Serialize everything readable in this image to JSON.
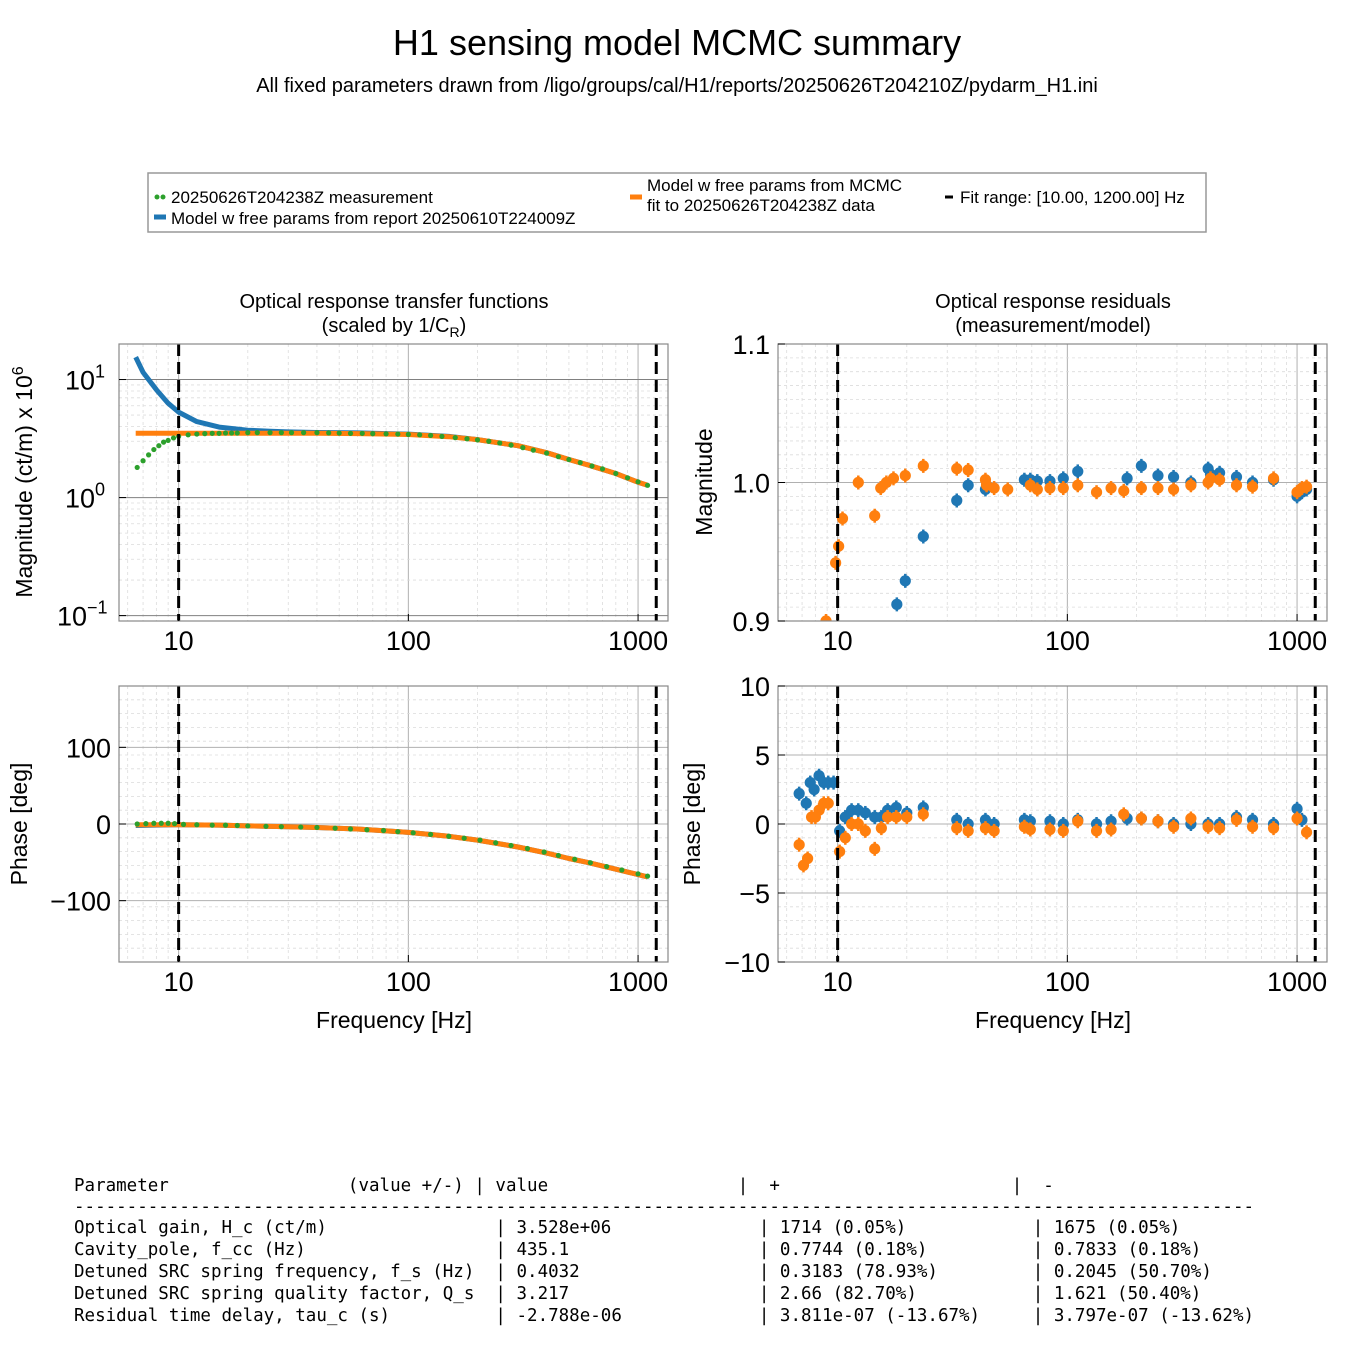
{
  "figure": {
    "title": "H1 sensing model MCMC summary",
    "subtitle": "All fixed parameters drawn from /ligo/groups/cal/H1/reports/20250626T204210Z/pydarm_H1.ini"
  },
  "legend": {
    "measurement": "20250626T204238Z measurement",
    "model_report": "Model w free params from report 20250610T224009Z",
    "model_mcmc_line1": "Model w free params from MCMC",
    "model_mcmc_line2": "fit to 20250626T204238Z data",
    "fit_range": "Fit range: [10.00, 1200.00] Hz"
  },
  "colors": {
    "measurement": "#2ca02c",
    "model_report": "#1f77b4",
    "model_mcmc": "#ff7f0e",
    "fit_range": "#000000"
  },
  "chart_data": [
    {
      "id": "tf_mag",
      "type": "line",
      "title": "Optical response transfer functions",
      "title_line2": "(scaled by 1/C",
      "title_sub": "R",
      "title_close": ")",
      "ylabel": "Magnitude (ct/m) x 10",
      "ylabel_sup": "6",
      "xscale": "log",
      "yscale": "log",
      "xlim": [
        5.5,
        1350
      ],
      "ylim": [
        0.09,
        20
      ],
      "xticks": [
        10,
        100,
        1000
      ],
      "xticklabels": [
        "10",
        "100",
        "1000"
      ],
      "yticks": [
        0.1,
        1,
        10
      ],
      "yticklabels": [
        "10",
        "10",
        "10"
      ],
      "yticksups": [
        "−1",
        "0",
        "1"
      ],
      "vlines": [
        10,
        1200
      ],
      "series": [
        {
          "name": "Model w free params from report 20250610T224009Z",
          "style": "line",
          "color": "#1f77b4",
          "x": [
            6.5,
            7,
            8,
            9,
            10,
            12,
            15,
            20,
            25,
            30,
            40,
            60,
            100,
            150,
            200,
            300,
            400,
            500,
            600,
            800,
            1000,
            1100
          ],
          "y": [
            15.5,
            11.5,
            8.2,
            6.3,
            5.3,
            4.4,
            3.95,
            3.72,
            3.64,
            3.6,
            3.56,
            3.53,
            3.45,
            3.3,
            3.1,
            2.75,
            2.4,
            2.1,
            1.9,
            1.6,
            1.35,
            1.27
          ]
        },
        {
          "name": "Model w free params from MCMC fit to 20250626T204238Z data",
          "style": "line",
          "color": "#ff7f0e",
          "x": [
            6.5,
            10,
            20,
            40,
            60,
            100,
            150,
            200,
            300,
            400,
            500,
            600,
            800,
            1000,
            1100
          ],
          "y": [
            3.5,
            3.5,
            3.5,
            3.5,
            3.48,
            3.42,
            3.28,
            3.1,
            2.75,
            2.4,
            2.1,
            1.9,
            1.6,
            1.35,
            1.27
          ]
        },
        {
          "name": "20250626T204238Z measurement",
          "style": "dots",
          "color": "#2ca02c",
          "x": [
            6.6,
            7.0,
            7.4,
            7.8,
            8.2,
            8.6,
            9.0,
            9.5,
            10.0,
            11,
            12,
            13,
            14,
            15,
            16,
            17,
            18,
            20,
            22,
            25,
            28,
            31,
            35,
            40,
            45,
            50,
            56,
            63,
            70,
            80,
            90,
            100,
            112,
            125,
            140,
            160,
            180,
            200,
            224,
            250,
            280,
            315,
            350,
            400,
            450,
            500,
            560,
            630,
            700,
            800,
            900,
            1000,
            1100
          ],
          "y": [
            1.8,
            2.05,
            2.3,
            2.55,
            2.75,
            2.95,
            3.05,
            3.2,
            3.3,
            3.4,
            3.45,
            3.48,
            3.5,
            3.5,
            3.52,
            3.52,
            3.52,
            3.55,
            3.55,
            3.55,
            3.55,
            3.55,
            3.55,
            3.55,
            3.53,
            3.52,
            3.5,
            3.5,
            3.48,
            3.47,
            3.45,
            3.43,
            3.4,
            3.36,
            3.3,
            3.22,
            3.15,
            3.08,
            3.0,
            2.9,
            2.78,
            2.65,
            2.52,
            2.38,
            2.22,
            2.1,
            1.98,
            1.85,
            1.75,
            1.6,
            1.47,
            1.36,
            1.27
          ]
        }
      ]
    },
    {
      "id": "res_mag",
      "type": "scatter",
      "title": "Optical response residuals",
      "title_line2": "(measurement/model)",
      "ylabel": "Magnitude",
      "xscale": "log",
      "xlim": [
        5.5,
        1350
      ],
      "ylim": [
        0.9,
        1.1
      ],
      "xticks": [
        10,
        100,
        1000
      ],
      "xticklabels": [
        "10",
        "100",
        "1000"
      ],
      "yticks": [
        0.9,
        1.0,
        1.1
      ],
      "yticklabels": [
        "0.9",
        "1.0",
        "1.1"
      ],
      "vlines": [
        10,
        1200
      ],
      "series": [
        {
          "name": "Model w free params from report 20250610T224009Z",
          "style": "points",
          "color": "#1f77b4",
          "x": [
            18.1,
            19.7,
            23.6,
            33,
            37,
            44,
            44.5,
            65,
            69,
            74,
            84,
            96,
            111,
            182,
            210,
            248,
            290,
            345,
            410,
            420,
            460,
            545,
            640,
            790,
            1000,
            1050,
            1100
          ],
          "y": [
            0.912,
            0.929,
            0.961,
            0.987,
            0.998,
            0.995,
            0.998,
            1.002,
            1.002,
            1.001,
            1.001,
            1.003,
            1.008,
            1.003,
            1.012,
            1.005,
            1.004,
            1.0,
            1.01,
            1.006,
            1.007,
            1.004,
            1.0,
            1.002,
            0.99,
            0.993,
            0.995
          ]
        },
        {
          "name": "Model w free params from MCMC fit to 20250626T204238Z data",
          "style": "points",
          "color": "#ff7f0e",
          "x": [
            8.9,
            9.8,
            10.1,
            10.5,
            12.3,
            14.5,
            15.4,
            16.3,
            17.5,
            19.7,
            23.6,
            33,
            37,
            44,
            44.5,
            48,
            55,
            69,
            74,
            84,
            96,
            111,
            134,
            155,
            176,
            210,
            248,
            290,
            345,
            410,
            420,
            460,
            545,
            640,
            790,
            1000,
            1050,
            1100
          ],
          "y": [
            0.9,
            0.942,
            0.954,
            0.974,
            1.0,
            0.976,
            0.996,
            1.0,
            1.003,
            1.005,
            1.012,
            1.01,
            1.009,
            1.002,
            0.998,
            0.996,
            0.995,
            0.998,
            0.995,
            0.996,
            0.996,
            0.998,
            0.993,
            0.996,
            0.994,
            0.996,
            0.996,
            0.995,
            0.998,
            1.0,
            1.003,
            1.002,
            0.998,
            0.997,
            1.003,
            0.993,
            0.996,
            0.997
          ]
        }
      ]
    },
    {
      "id": "tf_phase",
      "type": "line",
      "ylabel": "Phase [deg]",
      "xlabel": "Frequency [Hz]",
      "xscale": "log",
      "xlim": [
        5.5,
        1350
      ],
      "ylim": [
        -180,
        180
      ],
      "xticks": [
        10,
        100,
        1000
      ],
      "xticklabels": [
        "10",
        "100",
        "1000"
      ],
      "yticks": [
        100,
        0,
        -100
      ],
      "yticklabels": [
        "100",
        "0",
        "−100"
      ],
      "vlines": [
        10,
        1200
      ],
      "series": [
        {
          "name": "Model w free params from report 20250610T224009Z",
          "style": "line",
          "color": "#1f77b4",
          "x": [
            6.5,
            8,
            10,
            15,
            20,
            30,
            40,
            60,
            80,
            100,
            150,
            200,
            300,
            400,
            500,
            600,
            800,
            1000,
            1100
          ],
          "y": [
            -2,
            -1.5,
            -1,
            -1.5,
            -2.5,
            -3.5,
            -4.5,
            -6.5,
            -9,
            -11,
            -16,
            -21,
            -30,
            -38,
            -45,
            -50,
            -59,
            -66,
            -69
          ]
        },
        {
          "name": "Model w free params from MCMC fit to 20250626T204238Z data",
          "style": "line",
          "color": "#ff7f0e",
          "x": [
            6.5,
            8,
            10,
            15,
            20,
            30,
            40,
            60,
            80,
            100,
            150,
            200,
            300,
            400,
            500,
            600,
            800,
            1000,
            1100
          ],
          "y": [
            -1,
            -1,
            -1,
            -1.5,
            -2.5,
            -3.5,
            -4.5,
            -6.5,
            -9,
            -11,
            -16,
            -21,
            -30,
            -38,
            -45,
            -50,
            -59,
            -66,
            -69
          ]
        },
        {
          "name": "20250626T204238Z measurement",
          "style": "dots",
          "color": "#2ca02c",
          "x": [
            6.6,
            7.2,
            7.8,
            8.4,
            9.0,
            9.6,
            10.5,
            12,
            14,
            16,
            18,
            20,
            24,
            28,
            34,
            40,
            48,
            56,
            66,
            78,
            90,
            105,
            125,
            150,
            175,
            205,
            240,
            280,
            330,
            390,
            450,
            530,
            620,
            730,
            850,
            1000,
            1100
          ],
          "y": [
            0,
            0.5,
            1,
            1,
            1,
            0.5,
            -0.5,
            -1,
            -1.5,
            -1.5,
            -2,
            -2.5,
            -3,
            -3.5,
            -4,
            -4.5,
            -5.5,
            -6.5,
            -7.5,
            -8.5,
            -10,
            -11.5,
            -13.5,
            -16,
            -18.5,
            -21,
            -24.5,
            -28,
            -32,
            -36.5,
            -41,
            -46,
            -50.5,
            -55.5,
            -60,
            -65,
            -68
          ]
        }
      ]
    },
    {
      "id": "res_phase",
      "type": "scatter",
      "ylabel": "Phase [deg]",
      "xlabel": "Frequency [Hz]",
      "xscale": "log",
      "xlim": [
        5.5,
        1350
      ],
      "ylim": [
        -10,
        10
      ],
      "xticks": [
        10,
        100,
        1000
      ],
      "xticklabels": [
        "10",
        "100",
        "1000"
      ],
      "yticks": [
        10,
        5,
        0,
        -5,
        -10
      ],
      "yticklabels": [
        "10",
        "5",
        "0",
        "−5",
        "−10"
      ],
      "vlines": [
        10,
        1200
      ],
      "series": [
        {
          "name": "Model w free params from report 20250610T224009Z",
          "style": "points",
          "color": "#1f77b4",
          "x": [
            6.8,
            7.3,
            7.6,
            7.9,
            8.3,
            8.7,
            9.1,
            9.6,
            10.2,
            10.8,
            11.5,
            12.3,
            13.2,
            14.5,
            15.5,
            16.5,
            18,
            20,
            23.6,
            33,
            37,
            44,
            48,
            65,
            69,
            84,
            96,
            111,
            134,
            155,
            182,
            210,
            248,
            290,
            345,
            410,
            460,
            545,
            640,
            790,
            1000,
            1050
          ],
          "y": [
            2.2,
            1.5,
            3,
            2.5,
            3.5,
            3,
            3,
            3,
            -0.5,
            0.5,
            1,
            1,
            0.8,
            0.5,
            0.5,
            1,
            1.2,
            0.8,
            1.2,
            0.3,
            0,
            0.3,
            0,
            0.3,
            0.2,
            0.2,
            0,
            0.3,
            0,
            0.2,
            0.4,
            0.4,
            0.2,
            0,
            0,
            0,
            0,
            0.5,
            0.3,
            0,
            1.1,
            0.3
          ]
        },
        {
          "name": "Model w free params from MCMC fit to 20250626T204238Z data",
          "style": "points",
          "color": "#ff7f0e",
          "x": [
            6.8,
            7.1,
            7.4,
            7.7,
            8.0,
            8.3,
            8.7,
            9.1,
            10.2,
            10.8,
            11.5,
            12.3,
            13.2,
            14.5,
            15.5,
            16.5,
            18,
            20,
            23.6,
            33,
            37,
            44,
            48,
            65,
            69,
            84,
            96,
            111,
            134,
            155,
            176,
            210,
            248,
            290,
            345,
            410,
            460,
            545,
            640,
            790,
            1000,
            1100
          ],
          "y": [
            -1.5,
            -3,
            -2.5,
            0.5,
            0.5,
            1,
            1.5,
            1.5,
            -2,
            -1,
            0,
            0,
            -0.5,
            -1.8,
            -0.3,
            0.5,
            0.5,
            0.5,
            0.7,
            -0.3,
            -0.5,
            -0.3,
            -0.5,
            -0.2,
            -0.4,
            -0.4,
            -0.5,
            0.2,
            -0.5,
            -0.4,
            0.7,
            0.4,
            0.2,
            -0.2,
            0.4,
            -0.2,
            -0.3,
            0.3,
            -0.2,
            -0.3,
            0.4,
            -0.6
          ]
        }
      ]
    }
  ],
  "table": {
    "header": "Parameter                 (value +/-) | value                  |  +                      |  -",
    "separator": "----------------------------------------------------------------------------------------------------------------",
    "rows": [
      "Optical gain, H_c (ct/m)                | 3.528e+06              | 1714 (0.05%)            | 1675 (0.05%)",
      "Cavity_pole, f_cc (Hz)                  | 435.1                  | 0.7744 (0.18%)          | 0.7833 (0.18%)",
      "Detuned SRC spring frequency, f_s (Hz)  | 0.4032                 | 0.3183 (78.93%)         | 0.2045 (50.70%)",
      "Detuned SRC spring quality factor, Q_s  | 3.217                  | 2.66 (82.70%)           | 1.621 (50.40%)",
      "Residual time delay, tau_c (s)          | -2.788e-06             | 3.811e-07 (-13.67%)     | 3.797e-07 (-13.62%)"
    ]
  }
}
